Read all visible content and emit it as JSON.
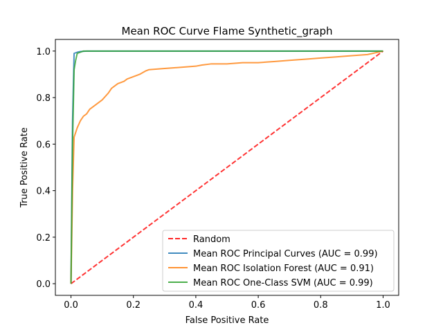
{
  "chart_data": {
    "type": "line",
    "title": "Mean ROC Curve Flame Synthetic_graph",
    "xlabel": "False Positive Rate",
    "ylabel": "True Positive Rate",
    "xlim": [
      -0.05,
      1.05
    ],
    "ylim": [
      -0.05,
      1.05
    ],
    "xticks": [
      0.0,
      0.2,
      0.4,
      0.6,
      0.8,
      1.0
    ],
    "yticks": [
      0.0,
      0.2,
      0.4,
      0.6,
      0.8,
      1.0
    ],
    "xtick_labels": [
      "0.0",
      "0.2",
      "0.4",
      "0.6",
      "0.8",
      "1.0"
    ],
    "ytick_labels": [
      "0.0",
      "0.2",
      "0.4",
      "0.6",
      "0.8",
      "1.0"
    ],
    "grid": false,
    "legend_position": "lower-right",
    "series": [
      {
        "name": "Random",
        "color": "#ff0000",
        "style": "dashed",
        "x": [
          0,
          1
        ],
        "y": [
          0,
          1
        ]
      },
      {
        "name": "Mean ROC Principal Curves (AUC = 0.99)",
        "color": "#1f77b4",
        "style": "solid",
        "x": [
          0,
          0.005,
          0.01,
          0.02,
          0.03,
          0.05,
          0.1,
          0.2,
          0.5,
          1.0
        ],
        "y": [
          0,
          0.7,
          0.99,
          0.995,
          0.998,
          1.0,
          1.0,
          1.0,
          1.0,
          1.0
        ]
      },
      {
        "name": "Mean ROC Isolation Forest (AUC = 0.91)",
        "color": "#ff7f0e",
        "style": "solid",
        "x": [
          0,
          0.005,
          0.01,
          0.02,
          0.03,
          0.04,
          0.05,
          0.06,
          0.08,
          0.1,
          0.12,
          0.13,
          0.15,
          0.17,
          0.18,
          0.2,
          0.22,
          0.24,
          0.25,
          0.3,
          0.35,
          0.4,
          0.42,
          0.45,
          0.5,
          0.55,
          0.6,
          0.65,
          0.7,
          0.75,
          0.8,
          0.85,
          0.9,
          0.95,
          1.0
        ],
        "y": [
          0,
          0.4,
          0.63,
          0.67,
          0.7,
          0.72,
          0.73,
          0.75,
          0.77,
          0.79,
          0.82,
          0.84,
          0.86,
          0.87,
          0.88,
          0.89,
          0.9,
          0.915,
          0.92,
          0.925,
          0.93,
          0.935,
          0.94,
          0.945,
          0.945,
          0.95,
          0.95,
          0.955,
          0.96,
          0.965,
          0.97,
          0.975,
          0.98,
          0.985,
          1.0
        ]
      },
      {
        "name": "Mean ROC One-Class SVM (AUC = 0.99)",
        "color": "#2ca02c",
        "style": "solid",
        "x": [
          0,
          0.005,
          0.01,
          0.015,
          0.02,
          0.03,
          0.04,
          0.05,
          0.1,
          0.5,
          1.0
        ],
        "y": [
          0,
          0.6,
          0.92,
          0.96,
          0.99,
          0.995,
          1.0,
          1.0,
          1.0,
          1.0,
          1.0
        ]
      }
    ]
  }
}
